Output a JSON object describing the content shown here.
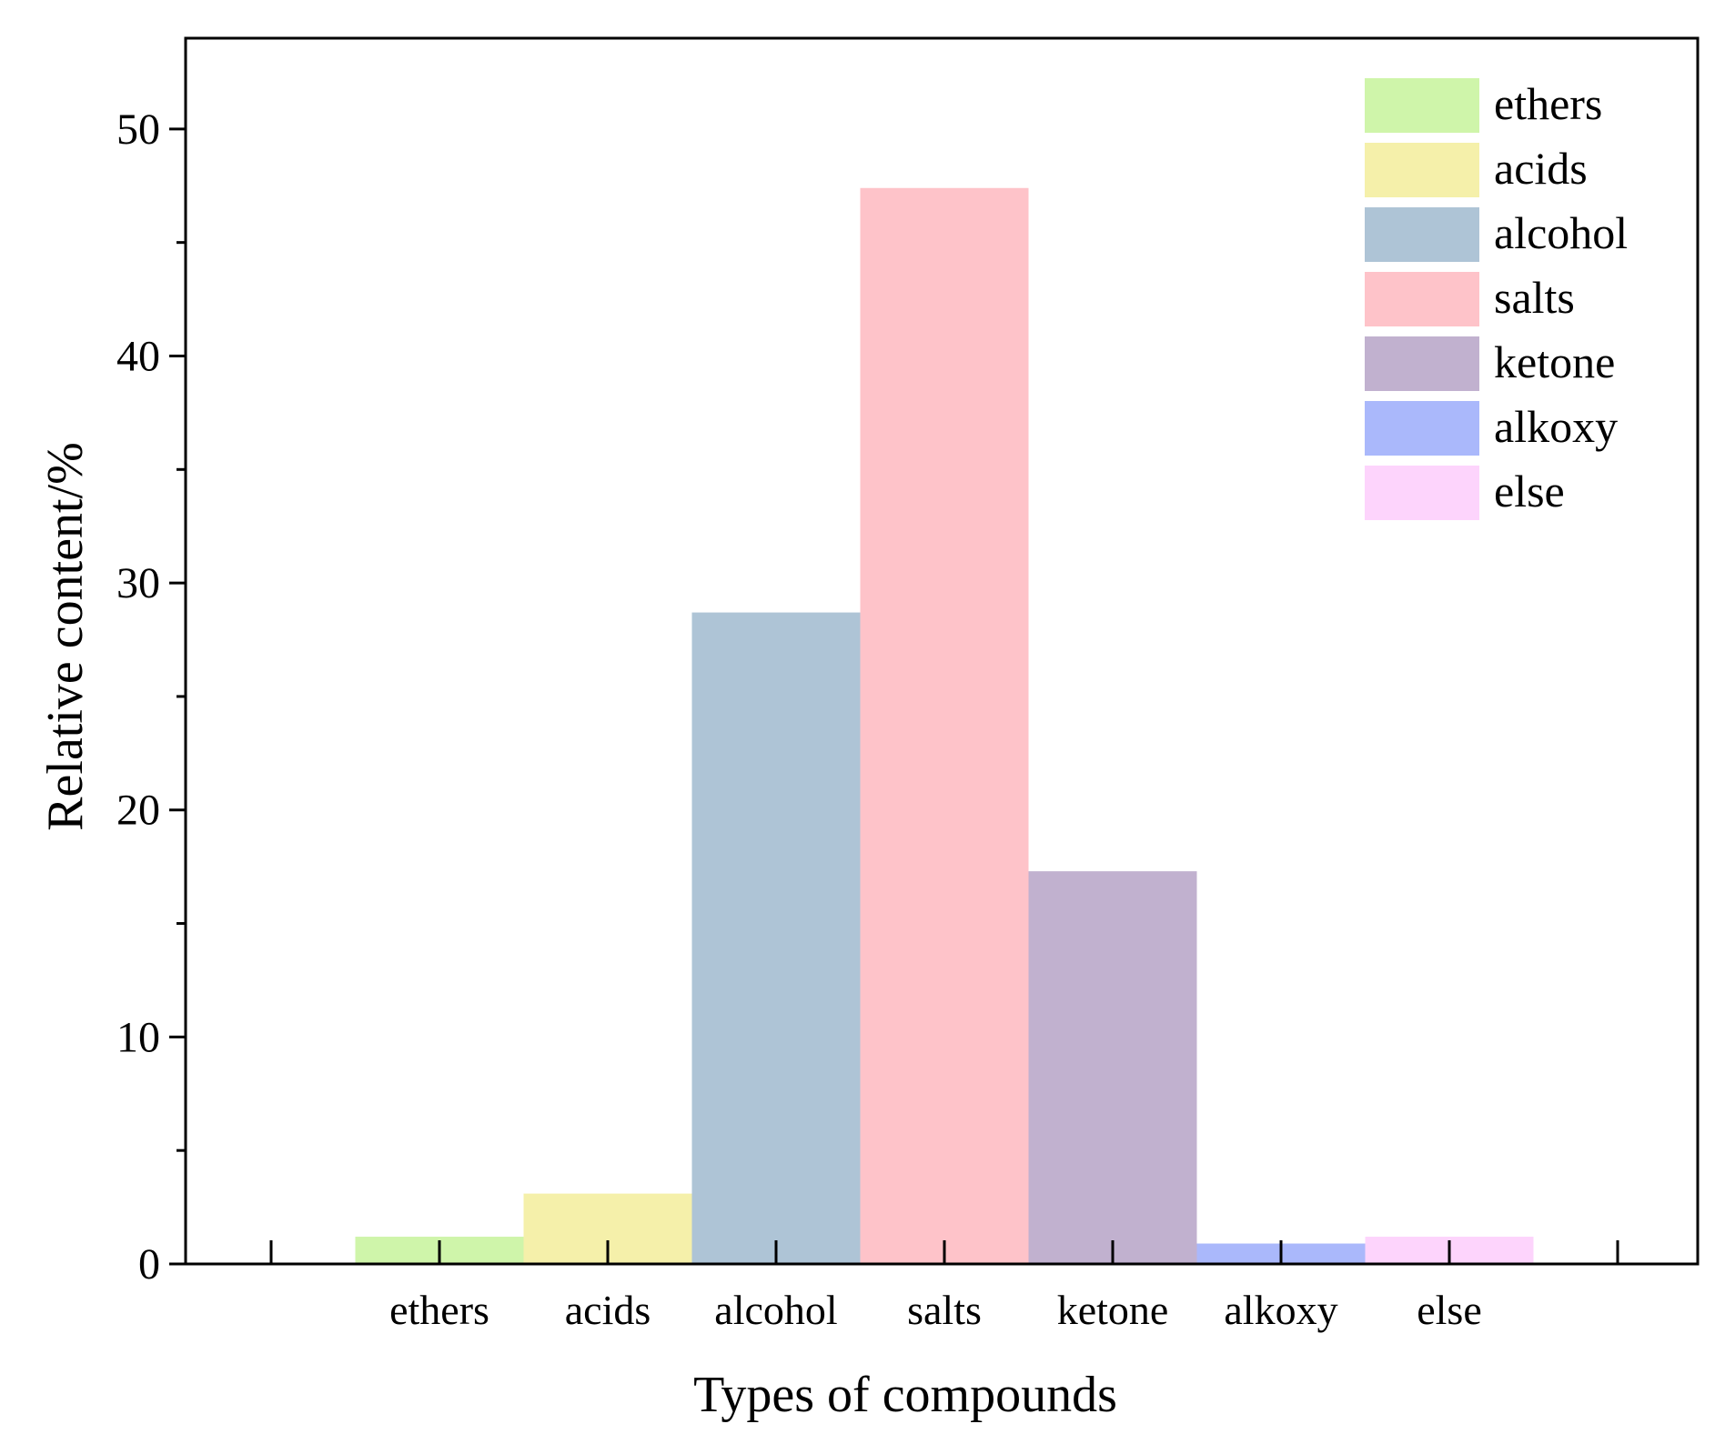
{
  "chart_data": {
    "type": "bar",
    "title": "",
    "xlabel": "Types of compounds",
    "ylabel": "Relative content/%",
    "categories": [
      "ethers",
      "acids",
      "alcohol",
      "salts",
      "ketone",
      "alkoxy",
      "else"
    ],
    "values": [
      1.2,
      3.1,
      28.7,
      47.4,
      17.3,
      0.9,
      1.2
    ],
    "colors": [
      "#cff5aa",
      "#f5f0aa",
      "#aec4d6",
      "#fec3c9",
      "#c1b1cf",
      "#aab8fb",
      "#fdd4fc"
    ],
    "ylim": [
      0,
      54
    ],
    "yticks": [
      0,
      10,
      20,
      30,
      40,
      50
    ],
    "y_minor_step": 5,
    "grid": false,
    "legend": {
      "position": "top-right",
      "items": [
        "ethers",
        "acids",
        "alcohol",
        "salts",
        "ketone",
        "alkoxy",
        "else"
      ]
    }
  }
}
